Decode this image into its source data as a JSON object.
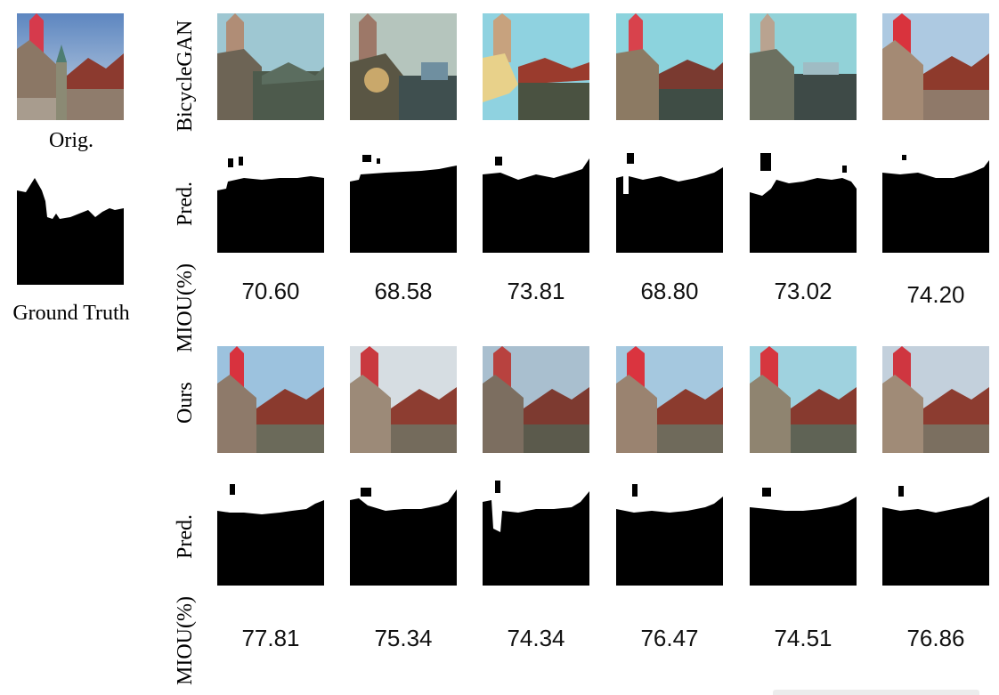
{
  "left": {
    "orig_label": "Orig.",
    "gt_label": "Ground Truth"
  },
  "rows": {
    "bicyclegan_label": "BicycleGAN",
    "pred_label": "Pred.",
    "miou_label": "MIOU(%)",
    "ours_label": "Ours"
  },
  "bicyclegan_miou": [
    "70.60",
    "68.58",
    "73.81",
    "68.80",
    "73.02",
    "74.20"
  ],
  "ours_miou": [
    "77.81",
    "75.34",
    "74.34",
    "76.47",
    "74.51",
    "76.86"
  ],
  "colors": {
    "sky": "#9ec7de",
    "red_tower": "#d9333d",
    "roof": "#8a3a2c",
    "mask_black": "#000000"
  }
}
